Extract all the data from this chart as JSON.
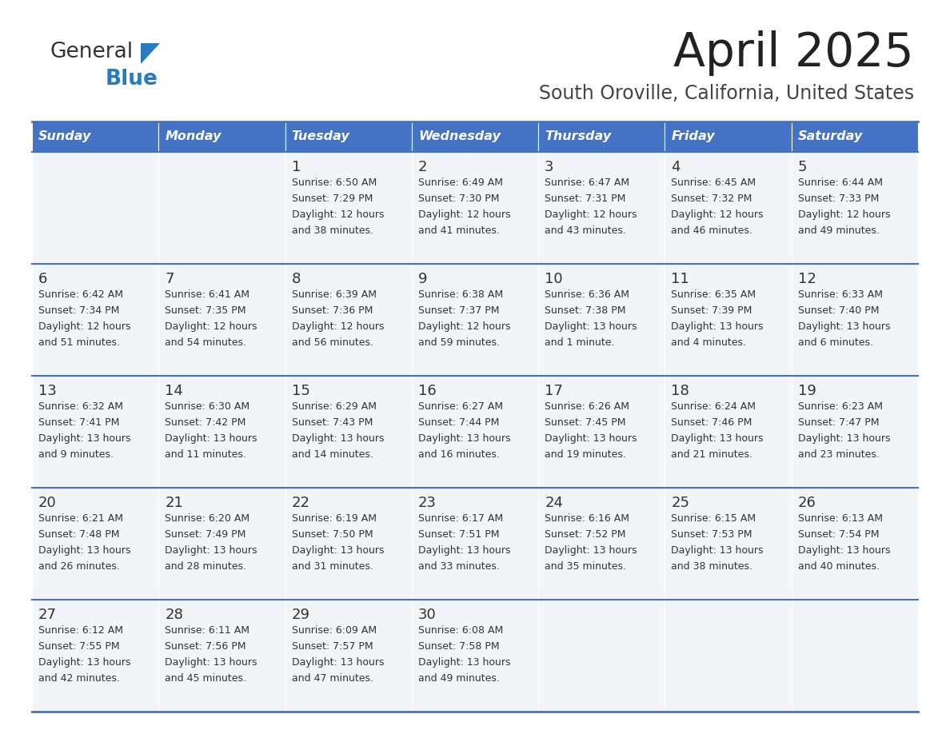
{
  "title": "April 2025",
  "subtitle": "South Oroville, California, United States",
  "days_of_week": [
    "Sunday",
    "Monday",
    "Tuesday",
    "Wednesday",
    "Thursday",
    "Friday",
    "Saturday"
  ],
  "header_bg": "#4472c4",
  "header_text": "#ffffff",
  "cell_bg": "#f2f4f8",
  "border_color": "#4472c4",
  "title_color": "#222222",
  "subtitle_color": "#444444",
  "text_color": "#333333",
  "logo_general_color": "#333333",
  "logo_blue_color": "#2a7abf",
  "logo_triangle_color": "#2a7abf",
  "calendar": [
    [
      {
        "day": "",
        "sunrise": "",
        "sunset": "",
        "daylight": ""
      },
      {
        "day": "",
        "sunrise": "",
        "sunset": "",
        "daylight": ""
      },
      {
        "day": "1",
        "sunrise": "Sunrise: 6:50 AM",
        "sunset": "Sunset: 7:29 PM",
        "daylight": "Daylight: 12 hours\nand 38 minutes."
      },
      {
        "day": "2",
        "sunrise": "Sunrise: 6:49 AM",
        "sunset": "Sunset: 7:30 PM",
        "daylight": "Daylight: 12 hours\nand 41 minutes."
      },
      {
        "day": "3",
        "sunrise": "Sunrise: 6:47 AM",
        "sunset": "Sunset: 7:31 PM",
        "daylight": "Daylight: 12 hours\nand 43 minutes."
      },
      {
        "day": "4",
        "sunrise": "Sunrise: 6:45 AM",
        "sunset": "Sunset: 7:32 PM",
        "daylight": "Daylight: 12 hours\nand 46 minutes."
      },
      {
        "day": "5",
        "sunrise": "Sunrise: 6:44 AM",
        "sunset": "Sunset: 7:33 PM",
        "daylight": "Daylight: 12 hours\nand 49 minutes."
      }
    ],
    [
      {
        "day": "6",
        "sunrise": "Sunrise: 6:42 AM",
        "sunset": "Sunset: 7:34 PM",
        "daylight": "Daylight: 12 hours\nand 51 minutes."
      },
      {
        "day": "7",
        "sunrise": "Sunrise: 6:41 AM",
        "sunset": "Sunset: 7:35 PM",
        "daylight": "Daylight: 12 hours\nand 54 minutes."
      },
      {
        "day": "8",
        "sunrise": "Sunrise: 6:39 AM",
        "sunset": "Sunset: 7:36 PM",
        "daylight": "Daylight: 12 hours\nand 56 minutes."
      },
      {
        "day": "9",
        "sunrise": "Sunrise: 6:38 AM",
        "sunset": "Sunset: 7:37 PM",
        "daylight": "Daylight: 12 hours\nand 59 minutes."
      },
      {
        "day": "10",
        "sunrise": "Sunrise: 6:36 AM",
        "sunset": "Sunset: 7:38 PM",
        "daylight": "Daylight: 13 hours\nand 1 minute."
      },
      {
        "day": "11",
        "sunrise": "Sunrise: 6:35 AM",
        "sunset": "Sunset: 7:39 PM",
        "daylight": "Daylight: 13 hours\nand 4 minutes."
      },
      {
        "day": "12",
        "sunrise": "Sunrise: 6:33 AM",
        "sunset": "Sunset: 7:40 PM",
        "daylight": "Daylight: 13 hours\nand 6 minutes."
      }
    ],
    [
      {
        "day": "13",
        "sunrise": "Sunrise: 6:32 AM",
        "sunset": "Sunset: 7:41 PM",
        "daylight": "Daylight: 13 hours\nand 9 minutes."
      },
      {
        "day": "14",
        "sunrise": "Sunrise: 6:30 AM",
        "sunset": "Sunset: 7:42 PM",
        "daylight": "Daylight: 13 hours\nand 11 minutes."
      },
      {
        "day": "15",
        "sunrise": "Sunrise: 6:29 AM",
        "sunset": "Sunset: 7:43 PM",
        "daylight": "Daylight: 13 hours\nand 14 minutes."
      },
      {
        "day": "16",
        "sunrise": "Sunrise: 6:27 AM",
        "sunset": "Sunset: 7:44 PM",
        "daylight": "Daylight: 13 hours\nand 16 minutes."
      },
      {
        "day": "17",
        "sunrise": "Sunrise: 6:26 AM",
        "sunset": "Sunset: 7:45 PM",
        "daylight": "Daylight: 13 hours\nand 19 minutes."
      },
      {
        "day": "18",
        "sunrise": "Sunrise: 6:24 AM",
        "sunset": "Sunset: 7:46 PM",
        "daylight": "Daylight: 13 hours\nand 21 minutes."
      },
      {
        "day": "19",
        "sunrise": "Sunrise: 6:23 AM",
        "sunset": "Sunset: 7:47 PM",
        "daylight": "Daylight: 13 hours\nand 23 minutes."
      }
    ],
    [
      {
        "day": "20",
        "sunrise": "Sunrise: 6:21 AM",
        "sunset": "Sunset: 7:48 PM",
        "daylight": "Daylight: 13 hours\nand 26 minutes."
      },
      {
        "day": "21",
        "sunrise": "Sunrise: 6:20 AM",
        "sunset": "Sunset: 7:49 PM",
        "daylight": "Daylight: 13 hours\nand 28 minutes."
      },
      {
        "day": "22",
        "sunrise": "Sunrise: 6:19 AM",
        "sunset": "Sunset: 7:50 PM",
        "daylight": "Daylight: 13 hours\nand 31 minutes."
      },
      {
        "day": "23",
        "sunrise": "Sunrise: 6:17 AM",
        "sunset": "Sunset: 7:51 PM",
        "daylight": "Daylight: 13 hours\nand 33 minutes."
      },
      {
        "day": "24",
        "sunrise": "Sunrise: 6:16 AM",
        "sunset": "Sunset: 7:52 PM",
        "daylight": "Daylight: 13 hours\nand 35 minutes."
      },
      {
        "day": "25",
        "sunrise": "Sunrise: 6:15 AM",
        "sunset": "Sunset: 7:53 PM",
        "daylight": "Daylight: 13 hours\nand 38 minutes."
      },
      {
        "day": "26",
        "sunrise": "Sunrise: 6:13 AM",
        "sunset": "Sunset: 7:54 PM",
        "daylight": "Daylight: 13 hours\nand 40 minutes."
      }
    ],
    [
      {
        "day": "27",
        "sunrise": "Sunrise: 6:12 AM",
        "sunset": "Sunset: 7:55 PM",
        "daylight": "Daylight: 13 hours\nand 42 minutes."
      },
      {
        "day": "28",
        "sunrise": "Sunrise: 6:11 AM",
        "sunset": "Sunset: 7:56 PM",
        "daylight": "Daylight: 13 hours\nand 45 minutes."
      },
      {
        "day": "29",
        "sunrise": "Sunrise: 6:09 AM",
        "sunset": "Sunset: 7:57 PM",
        "daylight": "Daylight: 13 hours\nand 47 minutes."
      },
      {
        "day": "30",
        "sunrise": "Sunrise: 6:08 AM",
        "sunset": "Sunset: 7:58 PM",
        "daylight": "Daylight: 13 hours\nand 49 minutes."
      },
      {
        "day": "",
        "sunrise": "",
        "sunset": "",
        "daylight": ""
      },
      {
        "day": "",
        "sunrise": "",
        "sunset": "",
        "daylight": ""
      },
      {
        "day": "",
        "sunrise": "",
        "sunset": "",
        "daylight": ""
      }
    ]
  ]
}
